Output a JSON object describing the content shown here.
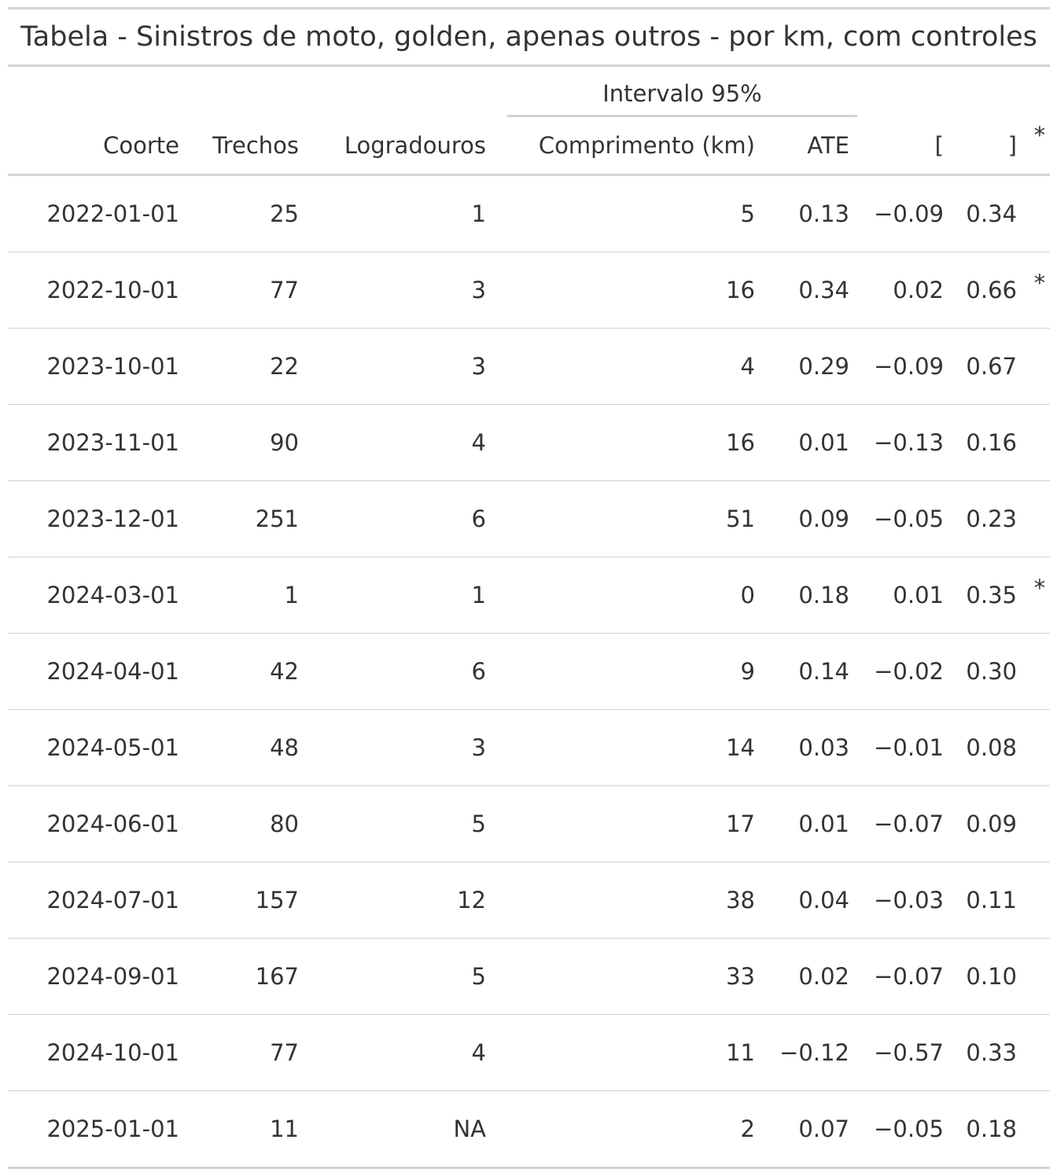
{
  "title": "Tabela - Sinistros de moto, golden, apenas outros - por km, com controles",
  "spanner": "Intervalo 95%",
  "columns": {
    "coorte": "Coorte",
    "trechos": "Trechos",
    "logradouros": "Logradouros",
    "comprimento": "Comprimento (km)",
    "ate": "ATE",
    "lo": "[",
    "hi": "]",
    "sig": "*"
  },
  "rows": [
    {
      "coorte": "2022-01-01",
      "trechos": "25",
      "logradouros": "1",
      "comprimento": "5",
      "ate": "0.13",
      "lo": "−0.09",
      "hi": "0.34",
      "sig": ""
    },
    {
      "coorte": "2022-10-01",
      "trechos": "77",
      "logradouros": "3",
      "comprimento": "16",
      "ate": "0.34",
      "lo": "0.02",
      "hi": "0.66",
      "sig": "*"
    },
    {
      "coorte": "2023-10-01",
      "trechos": "22",
      "logradouros": "3",
      "comprimento": "4",
      "ate": "0.29",
      "lo": "−0.09",
      "hi": "0.67",
      "sig": ""
    },
    {
      "coorte": "2023-11-01",
      "trechos": "90",
      "logradouros": "4",
      "comprimento": "16",
      "ate": "0.01",
      "lo": "−0.13",
      "hi": "0.16",
      "sig": ""
    },
    {
      "coorte": "2023-12-01",
      "trechos": "251",
      "logradouros": "6",
      "comprimento": "51",
      "ate": "0.09",
      "lo": "−0.05",
      "hi": "0.23",
      "sig": ""
    },
    {
      "coorte": "2024-03-01",
      "trechos": "1",
      "logradouros": "1",
      "comprimento": "0",
      "ate": "0.18",
      "lo": "0.01",
      "hi": "0.35",
      "sig": "*"
    },
    {
      "coorte": "2024-04-01",
      "trechos": "42",
      "logradouros": "6",
      "comprimento": "9",
      "ate": "0.14",
      "lo": "−0.02",
      "hi": "0.30",
      "sig": ""
    },
    {
      "coorte": "2024-05-01",
      "trechos": "48",
      "logradouros": "3",
      "comprimento": "14",
      "ate": "0.03",
      "lo": "−0.01",
      "hi": "0.08",
      "sig": ""
    },
    {
      "coorte": "2024-06-01",
      "trechos": "80",
      "logradouros": "5",
      "comprimento": "17",
      "ate": "0.01",
      "lo": "−0.07",
      "hi": "0.09",
      "sig": ""
    },
    {
      "coorte": "2024-07-01",
      "trechos": "157",
      "logradouros": "12",
      "comprimento": "38",
      "ate": "0.04",
      "lo": "−0.03",
      "hi": "0.11",
      "sig": ""
    },
    {
      "coorte": "2024-09-01",
      "trechos": "167",
      "logradouros": "5",
      "comprimento": "33",
      "ate": "0.02",
      "lo": "−0.07",
      "hi": "0.10",
      "sig": ""
    },
    {
      "coorte": "2024-10-01",
      "trechos": "77",
      "logradouros": "4",
      "comprimento": "11",
      "ate": "−0.12",
      "lo": "−0.57",
      "hi": "0.33",
      "sig": ""
    },
    {
      "coorte": "2025-01-01",
      "trechos": "11",
      "logradouros": "NA",
      "comprimento": "2",
      "ate": "0.07",
      "lo": "−0.05",
      "hi": "0.18",
      "sig": ""
    }
  ]
}
